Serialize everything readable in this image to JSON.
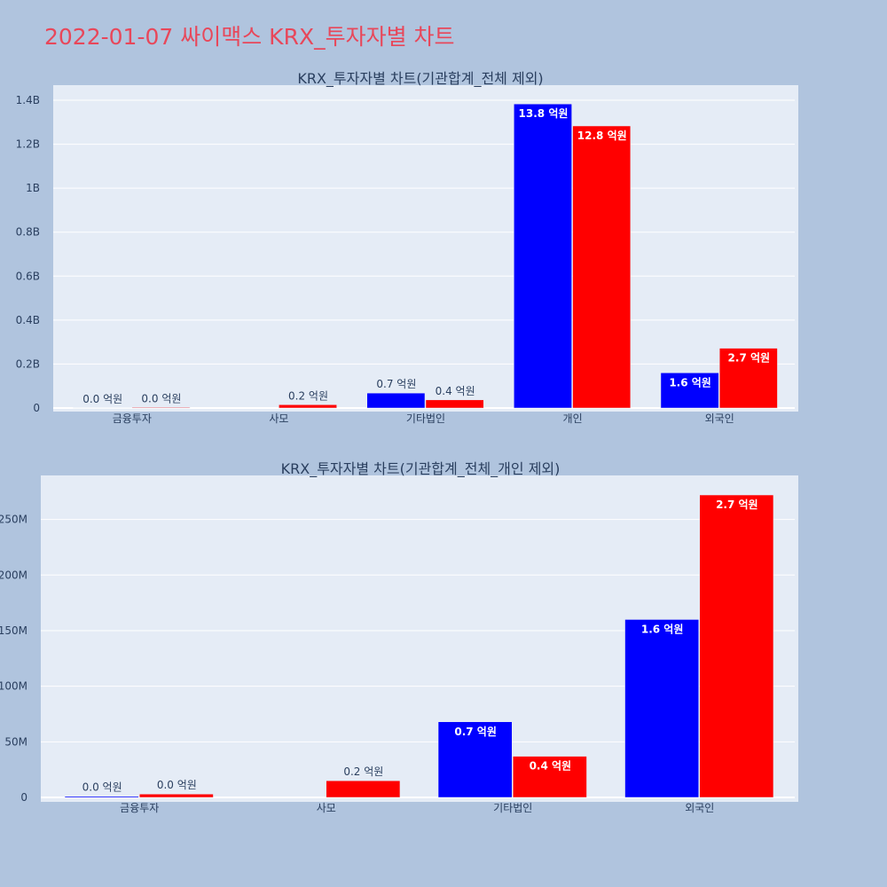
{
  "page_title": "2022-01-07 싸이맥스 KRX_투자자별 차트",
  "colors": {
    "background": "#b0c4de",
    "plot_bg": "#e5ecf6",
    "grid": "#ffffff",
    "title": "#e8475a",
    "text": "#2a3f5f",
    "series_blue": "#0000ff",
    "series_red": "#ff0000"
  },
  "chart_data": [
    {
      "type": "bar",
      "title": "KRX_투자자별 차트(기관합계_전체 제외)",
      "xlabel": "",
      "ylabel": "",
      "categories": [
        "금융투자",
        "사모",
        "기타법인",
        "개인",
        "외국인"
      ],
      "ylim": [
        0,
        1400000000.0
      ],
      "yticks": [
        0,
        200000000.0,
        400000000.0,
        600000000.0,
        800000000.0,
        1000000000.0,
        1200000000.0,
        1400000000.0
      ],
      "ytick_labels": [
        "0",
        "0.2B",
        "0.4B",
        "0.6B",
        "0.8B",
        "1B",
        "1.2B",
        "1.4B"
      ],
      "grid": true,
      "series": [
        {
          "color": "#0000ff",
          "values": [
            1000000,
            0,
            68000000,
            1383000000,
            160000000
          ],
          "labels": [
            "0.0 억원",
            "",
            "0.7 억원",
            "13.8 억원",
            "1.6 억원"
          ]
        },
        {
          "color": "#ff0000",
          "values": [
            3000000,
            15000000,
            37000000,
            1283000000,
            272000000
          ],
          "labels": [
            "0.0 억원",
            "0.2 억원",
            "0.4 억원",
            "12.8 억원",
            "2.7 억원"
          ]
        }
      ]
    },
    {
      "type": "bar",
      "title": "KRX_투자자별 차트(기관합계_전체_개인 제외)",
      "xlabel": "",
      "ylabel": "",
      "categories": [
        "금융투자",
        "사모",
        "기타법인",
        "외국인"
      ],
      "ylim": [
        0,
        280000000.0
      ],
      "yticks": [
        0,
        50000000.0,
        100000000.0,
        150000000.0,
        200000000.0,
        250000000.0
      ],
      "ytick_labels": [
        "0",
        "50M",
        "100M",
        "150M",
        "200M",
        "250M"
      ],
      "grid": true,
      "series": [
        {
          "color": "#0000ff",
          "values": [
            1000000,
            0,
            68000000,
            160000000
          ],
          "labels": [
            "0.0 억원",
            "",
            "0.7 억원",
            "1.6 억원"
          ]
        },
        {
          "color": "#ff0000",
          "values": [
            3000000,
            15000000,
            37000000,
            272000000
          ],
          "labels": [
            "0.0 억원",
            "0.2 억원",
            "0.4 억원",
            "2.7 억원"
          ]
        }
      ]
    }
  ]
}
